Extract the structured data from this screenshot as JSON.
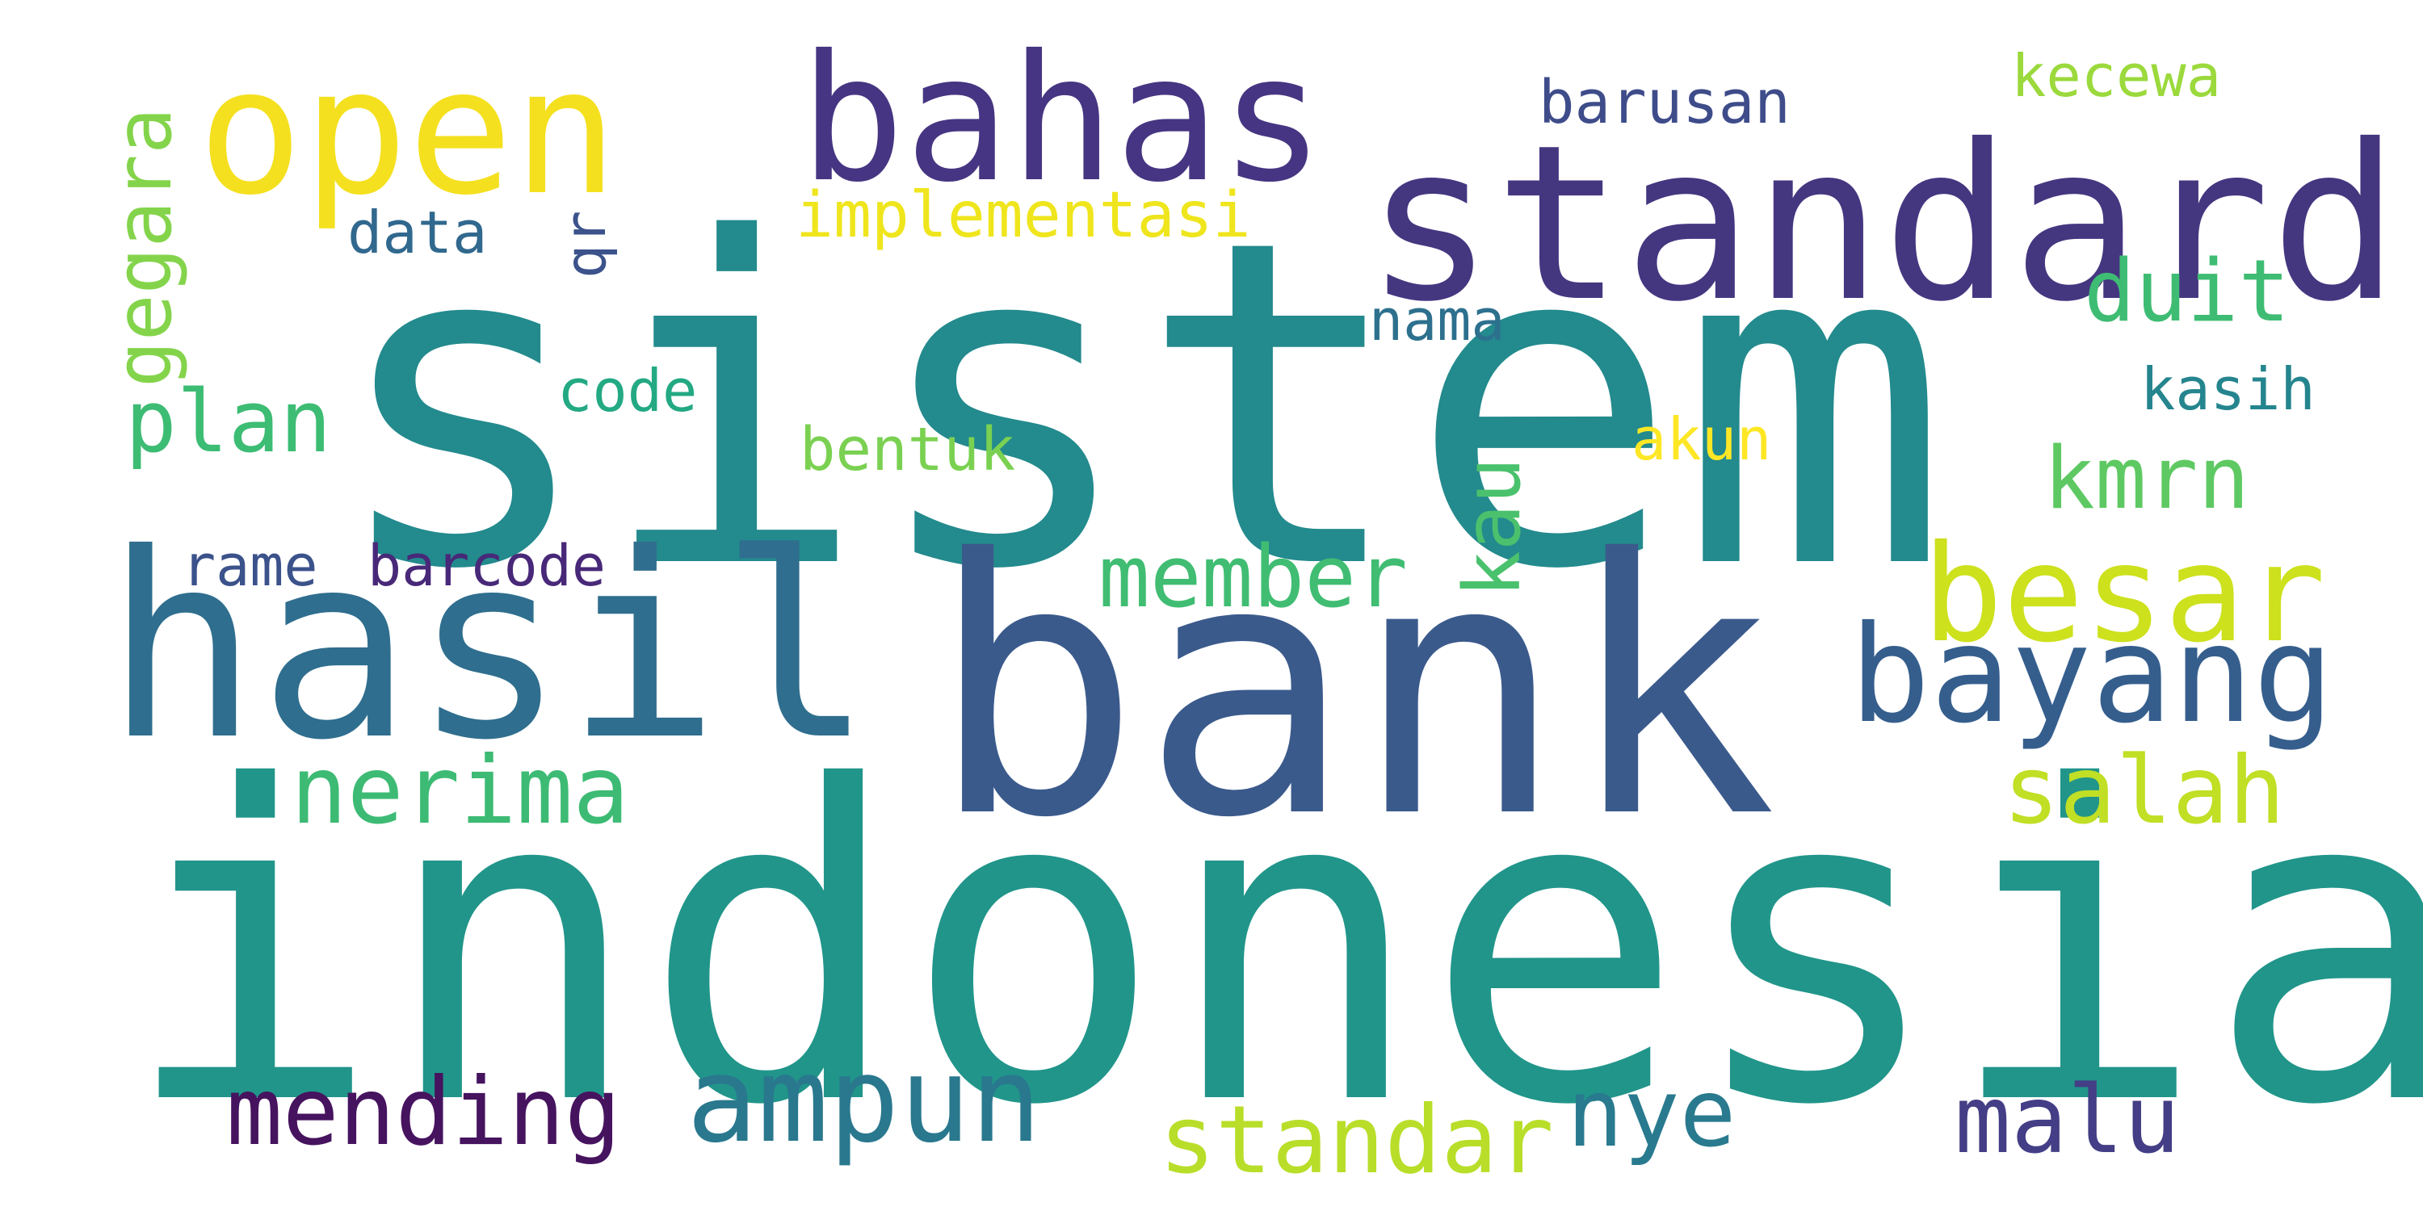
{
  "words": [
    {
      "text": "sistem",
      "color": "#238a8d",
      "rotated": false
    },
    {
      "text": "indonesia",
      "color": "#21958a",
      "rotated": false
    },
    {
      "text": "bank",
      "color": "#3b5a8c",
      "rotated": false
    },
    {
      "text": "hasil",
      "color": "#2f6e8e",
      "rotated": false
    },
    {
      "text": "standard",
      "color": "#453680",
      "rotated": false
    },
    {
      "text": "bahas",
      "color": "#463582",
      "rotated": false
    },
    {
      "text": "open",
      "color": "#f4e01e",
      "rotated": false
    },
    {
      "text": "besar",
      "color": "#cde11d",
      "rotated": false
    },
    {
      "text": "bayang",
      "color": "#355e8d",
      "rotated": false
    },
    {
      "text": "ampun",
      "color": "#29788e",
      "rotated": false
    },
    {
      "text": "mending",
      "color": "#46135f",
      "rotated": false
    },
    {
      "text": "nerima",
      "color": "#3dbb74",
      "rotated": false
    },
    {
      "text": "salah",
      "color": "#c0df25",
      "rotated": false
    },
    {
      "text": "malu",
      "color": "#433e85",
      "rotated": false
    },
    {
      "text": "nye",
      "color": "#297a8e",
      "rotated": false
    },
    {
      "text": "standar",
      "color": "#b8de29",
      "rotated": false
    },
    {
      "text": "member",
      "color": "#40bd72",
      "rotated": false
    },
    {
      "text": "kmrn",
      "color": "#5ec962",
      "rotated": false
    },
    {
      "text": "duit",
      "color": "#3fbc73",
      "rotated": false
    },
    {
      "text": "plan",
      "color": "#3dbc74",
      "rotated": false
    },
    {
      "text": "gegara",
      "color": "#84d44b",
      "rotated": true
    },
    {
      "text": "kau",
      "color": "#4ac16d",
      "rotated": true
    },
    {
      "text": "implementasi",
      "color": "#efe51c",
      "rotated": false
    },
    {
      "text": "barusan",
      "color": "#3e4c8a",
      "rotated": false
    },
    {
      "text": "kecewa",
      "color": "#9bd93c",
      "rotated": false
    },
    {
      "text": "data",
      "color": "#31688e",
      "rotated": false
    },
    {
      "text": "qr",
      "color": "#3b528b",
      "rotated": true
    },
    {
      "text": "nama",
      "color": "#2d708e",
      "rotated": false
    },
    {
      "text": "code",
      "color": "#23a983",
      "rotated": false
    },
    {
      "text": "kasih",
      "color": "#25858e",
      "rotated": false
    },
    {
      "text": "bentuk",
      "color": "#7ad151",
      "rotated": false
    },
    {
      "text": "akun",
      "color": "#fde725",
      "rotated": false
    },
    {
      "text": "rame",
      "color": "#3b528b",
      "rotated": false
    },
    {
      "text": "barcode",
      "color": "#482878",
      "rotated": false
    }
  ]
}
